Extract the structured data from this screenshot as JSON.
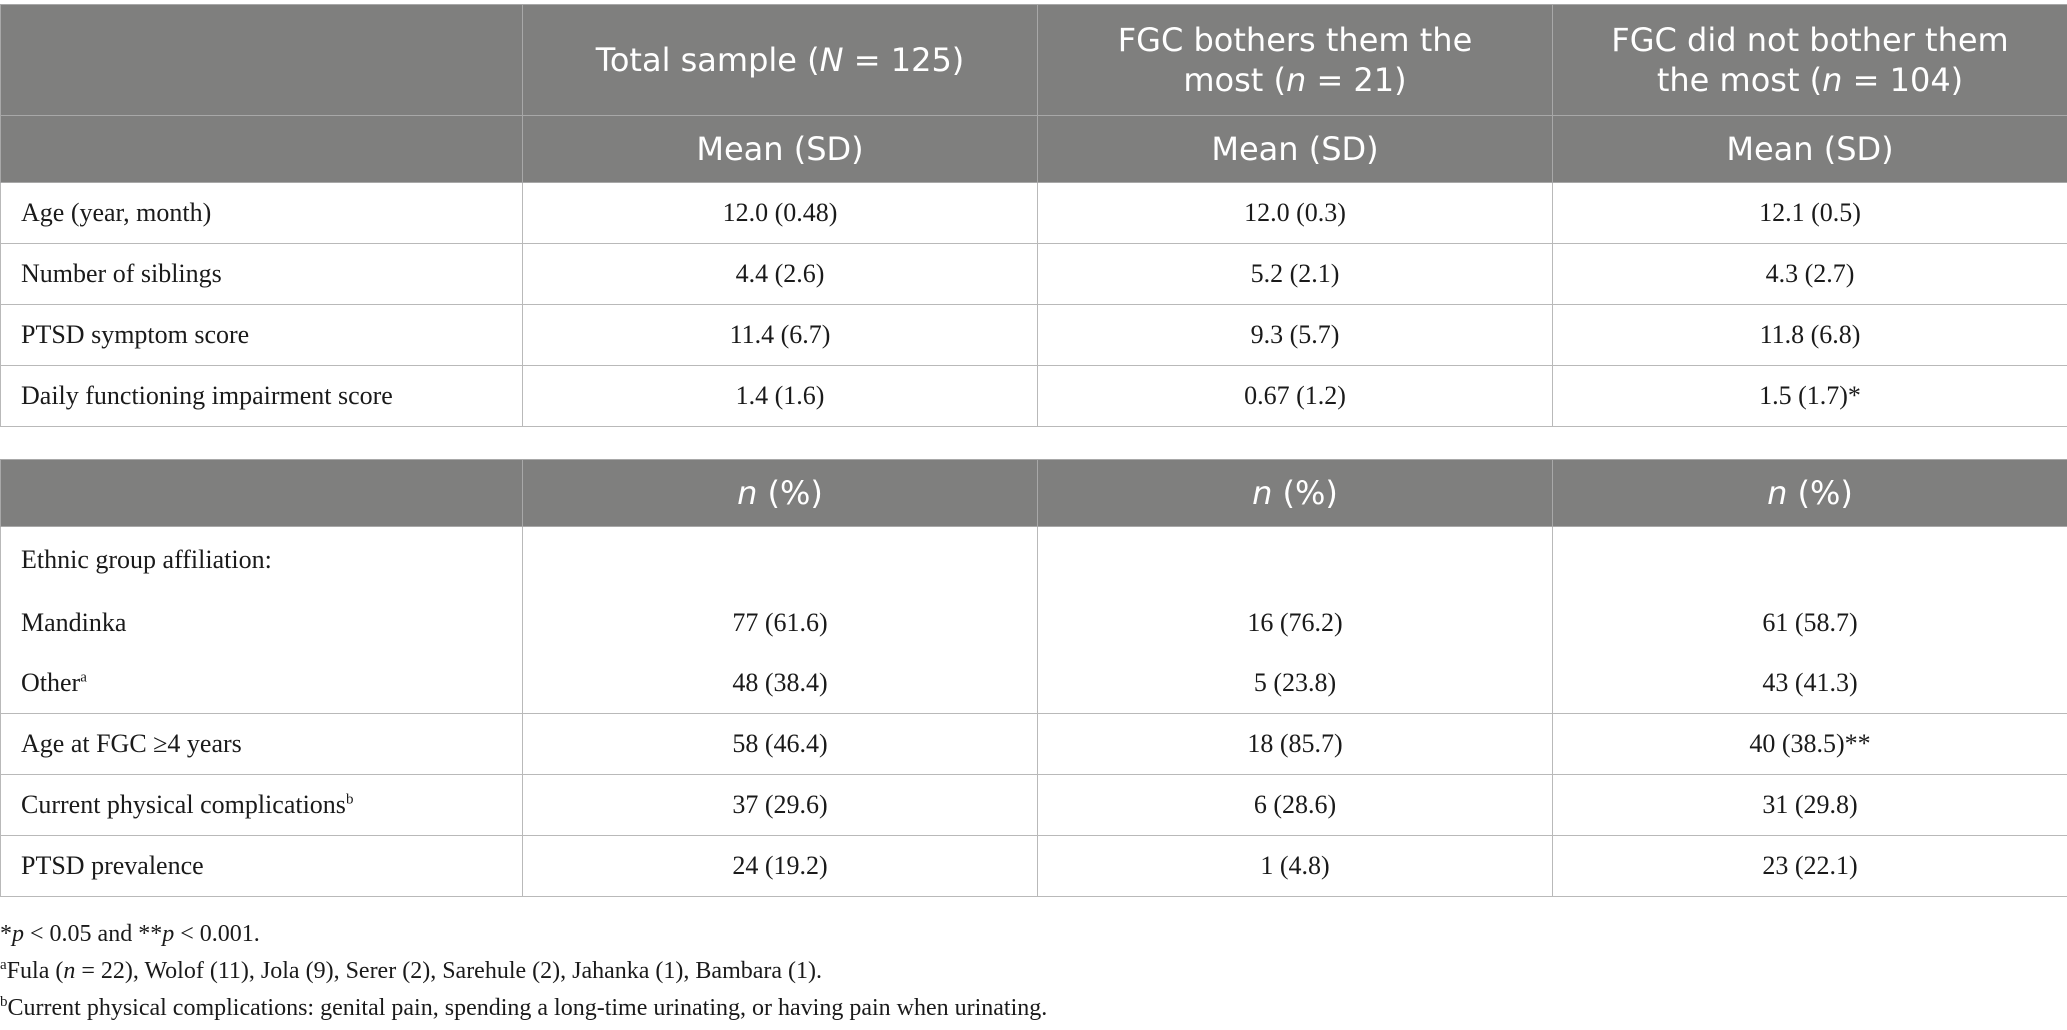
{
  "table1": {
    "headers": [
      {
        "lead": "Total sample (",
        "var": "N",
        "tail": " = 125)"
      },
      {
        "lead": "FGC bothers them the most (",
        "var": "n",
        "tail": " = 21)"
      },
      {
        "lead": "FGC did not bother them the most (",
        "var": "n",
        "tail": " = 104)"
      }
    ],
    "subheader": "Mean (SD)",
    "rows": [
      {
        "label": "Age (year, month)",
        "values": [
          "12.0 (0.48)",
          "12.0 (0.3)",
          "12.1 (0.5)"
        ]
      },
      {
        "label": "Number of siblings",
        "values": [
          "4.4 (2.6)",
          "5.2 (2.1)",
          "4.3 (2.7)"
        ]
      },
      {
        "label": "PTSD symptom score",
        "values": [
          "11.4 (6.7)",
          "9.3 (5.7)",
          "11.8 (6.8)"
        ]
      },
      {
        "label": "Daily functioning impairment score",
        "values": [
          "1.4 (1.6)",
          "0.67 (1.2)",
          "1.5 (1.7)*"
        ]
      }
    ]
  },
  "table2": {
    "header": {
      "var": "n",
      "tail": " (%)"
    },
    "group_label": "Ethnic group affiliation:",
    "rows": [
      {
        "label": "Mandinka",
        "sup": "",
        "values": [
          "77 (61.6)",
          "16 (76.2)",
          "61 (58.7)"
        ]
      },
      {
        "label": "Other",
        "sup": "a",
        "values": [
          "48 (38.4)",
          "5 (23.8)",
          "43 (41.3)"
        ]
      },
      {
        "label": "Age at FGC ≥4 years",
        "sup": "",
        "values": [
          "58 (46.4)",
          "18 (85.7)",
          "40 (38.5)**"
        ]
      },
      {
        "label": "Current physical complications",
        "sup": "b",
        "values": [
          "37 (29.6)",
          "6 (28.6)",
          "31 (29.8)"
        ]
      },
      {
        "label": "PTSD prevalence",
        "sup": "",
        "values": [
          "24 (19.2)",
          "1 (4.8)",
          "23 (22.1)"
        ]
      }
    ]
  },
  "notes": {
    "sig": {
      "p1": "*",
      "p1_var": "p",
      "p1_tail": " < 0.05 and **",
      "p2_var": "p",
      "p2_tail": " < 0.001."
    },
    "a": {
      "mark": "a",
      "lead": "Fula (",
      "var": "n",
      "tail": " = 22), Wolof (11), Jola (9), Serer (2), Sarehule (2), Jahanka (1), Bambara (1)."
    },
    "b": {
      "mark": "b",
      "text": "Current physical complications: genital pain, spending a long-time urinating, or having pain when urinating."
    }
  }
}
